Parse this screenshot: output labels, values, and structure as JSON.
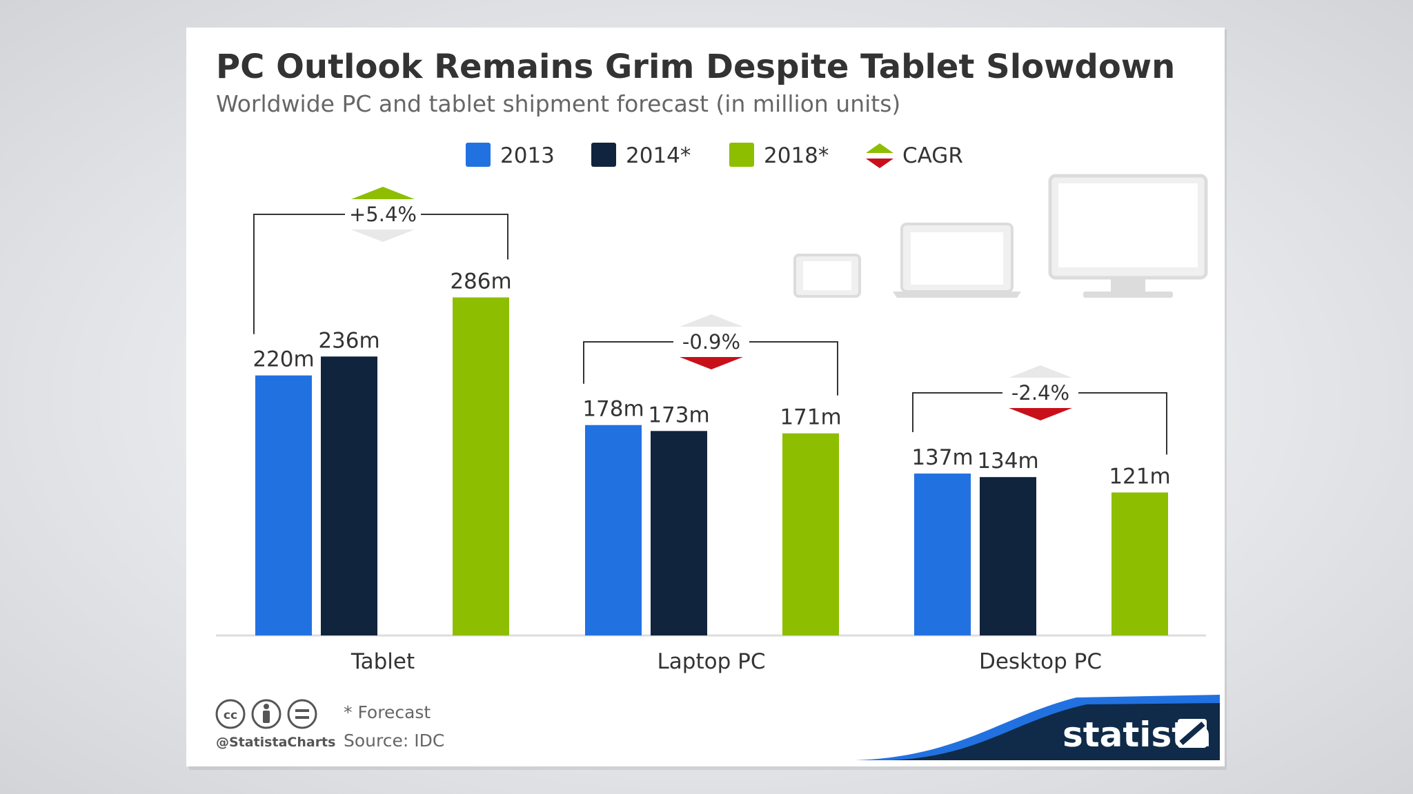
{
  "chart_data": {
    "type": "bar",
    "title": "PC Outlook Remains Grim Despite Tablet Slowdown",
    "subtitle": "Worldwide PC and tablet shipment forecast (in million units)",
    "categories": [
      "Tablet",
      "Laptop PC",
      "Desktop PC"
    ],
    "series": [
      {
        "name": "2013",
        "color": "#2271e1",
        "values": [
          220,
          178,
          137
        ],
        "labels": [
          "220m",
          "178m",
          "137m"
        ]
      },
      {
        "name": "2014*",
        "color": "#11243e",
        "values": [
          236,
          173,
          134
        ],
        "labels": [
          "236m",
          "173m",
          "134m"
        ]
      },
      {
        "name": "2018*",
        "color": "#8dbe00",
        "values": [
          286,
          171,
          121
        ],
        "labels": [
          "286m",
          "171m",
          "121m"
        ]
      }
    ],
    "cagr": {
      "legend_label": "CAGR",
      "values": [
        5.4,
        -0.9,
        -2.4
      ],
      "labels": [
        "+5.4%",
        "-0.9%",
        "-2.4%"
      ],
      "up_color": "#8dbe00",
      "down_color": "#c8101a"
    },
    "ylim": [
      0,
      300
    ],
    "xlabel": "",
    "ylabel": ""
  },
  "footer": {
    "note": "* Forecast",
    "source": "Source: IDC",
    "handle": "@StatistaCharts",
    "brand": "statista"
  },
  "icons": {
    "license": [
      "cc-icon",
      "attribution-icon",
      "no-derivatives-icon"
    ],
    "devices": [
      "tablet-icon",
      "laptop-icon",
      "desktop-monitor-icon"
    ]
  },
  "colors": {
    "card_bg": "#ffffff",
    "brand_dark": "#0f2b49",
    "brand_blue": "#2271e1"
  }
}
